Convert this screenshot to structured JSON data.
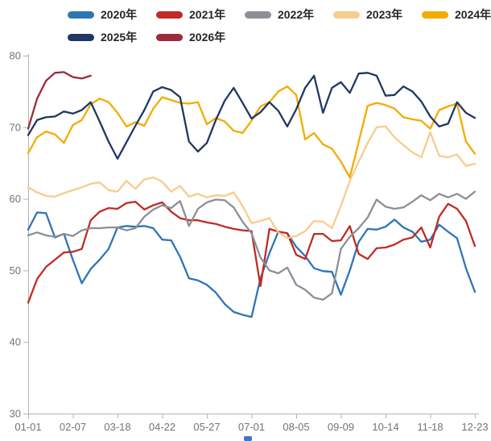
{
  "chart_data": {
    "type": "line",
    "title": "",
    "xlabel": "",
    "ylabel": "",
    "ylim": [
      30,
      80
    ],
    "y_ticks": [
      30,
      40,
      50,
      60,
      70,
      80
    ],
    "x_tick_labels": [
      "01-01",
      "02-07",
      "03-18",
      "04-22",
      "05-27",
      "07-01",
      "08-05",
      "09-09",
      "10-14",
      "11-18",
      "12-23"
    ],
    "x_tick_indices": [
      0,
      5,
      10,
      15,
      20,
      25,
      30,
      35,
      40,
      45,
      50
    ],
    "n_points": 51,
    "grid": false,
    "legend_position": "top",
    "axis_color": "#b3b3b3",
    "tick_label_color": "#737373",
    "series": [
      {
        "name": "2020年",
        "color": "#2E75B6",
        "values": [
          55.7,
          58.1,
          58.0,
          54.6,
          55.1,
          51.5,
          48.2,
          50.2,
          51.5,
          53.0,
          56.0,
          56.2,
          56.1,
          56.2,
          55.9,
          54.3,
          54.2,
          51.9,
          48.9,
          48.6,
          48.0,
          46.9,
          45.3,
          44.2,
          43.8,
          43.5,
          48.9,
          52.4,
          55.4,
          55.2,
          53.3,
          52.0,
          50.3,
          49.9,
          49.8,
          46.6,
          50.0,
          54.0,
          55.8,
          55.7,
          56.1,
          57.1,
          56.0,
          55.4,
          54.0,
          54.3,
          56.4,
          55.4,
          54.5,
          50.3,
          47.0
        ]
      },
      {
        "name": "2021年",
        "color": "#C02B23",
        "values": [
          45.5,
          48.8,
          50.5,
          51.5,
          52.5,
          52.6,
          53.0,
          57.0,
          58.2,
          58.7,
          58.6,
          59.4,
          59.6,
          58.5,
          59.1,
          59.5,
          58.2,
          57.3,
          57.0,
          57.0,
          56.7,
          56.5,
          56.1,
          55.8,
          55.6,
          55.5,
          47.8,
          55.8,
          55.4,
          55.2,
          52.2,
          51.6,
          55.1,
          55.1,
          54.1,
          54.2,
          56.2,
          52.3,
          51.6,
          53.1,
          53.2,
          53.6,
          54.3,
          54.6,
          56.0,
          53.2,
          57.5,
          59.3,
          58.6,
          56.9,
          53.4
        ]
      },
      {
        "name": "2022年",
        "color": "#8C8F98",
        "values": [
          54.9,
          55.3,
          54.9,
          54.7,
          55.1,
          54.8,
          55.6,
          55.9,
          55.9,
          56.0,
          56.0,
          55.6,
          55.9,
          57.5,
          58.5,
          59.1,
          58.7,
          59.7,
          56.2,
          58.6,
          59.5,
          59.9,
          59.8,
          58.8,
          56.8,
          55.2,
          51.8,
          50.0,
          49.6,
          50.4,
          48.0,
          47.3,
          46.2,
          45.9,
          46.8,
          53.0,
          54.7,
          55.9,
          57.4,
          59.9,
          58.9,
          58.6,
          58.8,
          59.6,
          60.5,
          59.8,
          60.7,
          60.2,
          60.7,
          60.0,
          61.0
        ]
      },
      {
        "name": "2023年",
        "color": "#F8CC8C",
        "values": [
          61.6,
          60.9,
          60.4,
          60.3,
          60.8,
          61.2,
          61.6,
          62.1,
          62.3,
          61.2,
          61.0,
          62.5,
          61.4,
          62.7,
          63.0,
          62.4,
          61.0,
          61.8,
          60.3,
          60.7,
          60.2,
          60.5,
          60.4,
          60.9,
          59.0,
          56.6,
          56.9,
          57.3,
          55.3,
          54.5,
          54.8,
          55.5,
          56.9,
          56.8,
          55.9,
          59.0,
          62.5,
          65.2,
          67.8,
          70.0,
          70.1,
          68.6,
          67.5,
          66.5,
          65.8,
          69.3,
          66.0,
          65.8,
          66.2,
          64.6,
          64.9
        ]
      },
      {
        "name": "2024年",
        "color": "#F2AC00",
        "values": [
          66.4,
          68.6,
          69.4,
          69.0,
          67.8,
          70.3,
          71.0,
          73.2,
          74.0,
          73.5,
          72.0,
          70.1,
          70.7,
          70.2,
          72.6,
          74.2,
          73.8,
          73.4,
          73.3,
          73.5,
          70.4,
          71.3,
          70.8,
          69.5,
          69.2,
          70.9,
          72.9,
          73.5,
          75.0,
          75.7,
          74.5,
          68.3,
          69.2,
          67.6,
          67.0,
          65.2,
          63.0,
          68.0,
          73.0,
          73.4,
          73.1,
          72.6,
          71.4,
          71.1,
          70.9,
          69.8,
          72.4,
          72.9,
          73.3,
          68.0,
          66.3
        ]
      },
      {
        "name": "2025年",
        "color": "#1F3864",
        "values": [
          68.9,
          71.0,
          71.4,
          71.5,
          72.2,
          71.9,
          72.4,
          73.5,
          70.8,
          68.0,
          65.6,
          67.9,
          70.2,
          72.4,
          75.0,
          75.6,
          75.2,
          74.2,
          68.0,
          66.6,
          67.8,
          71.0,
          73.7,
          75.5,
          73.4,
          71.2,
          72.1,
          73.5,
          72.3,
          70.1,
          72.5,
          75.5,
          77.2,
          72.0,
          75.5,
          76.3,
          74.8,
          77.5,
          77.6,
          77.2,
          74.4,
          74.5,
          75.7,
          75.0,
          73.6,
          71.5,
          70.1,
          70.5,
          73.5,
          72.0,
          71.3
        ]
      },
      {
        "name": "2026年",
        "color": "#9E2B3B",
        "values": [
          69.8,
          74.0,
          76.5,
          77.6,
          77.7,
          77.0,
          76.8,
          77.2
        ]
      }
    ]
  },
  "fragment": {
    "color": "#4472C4"
  }
}
